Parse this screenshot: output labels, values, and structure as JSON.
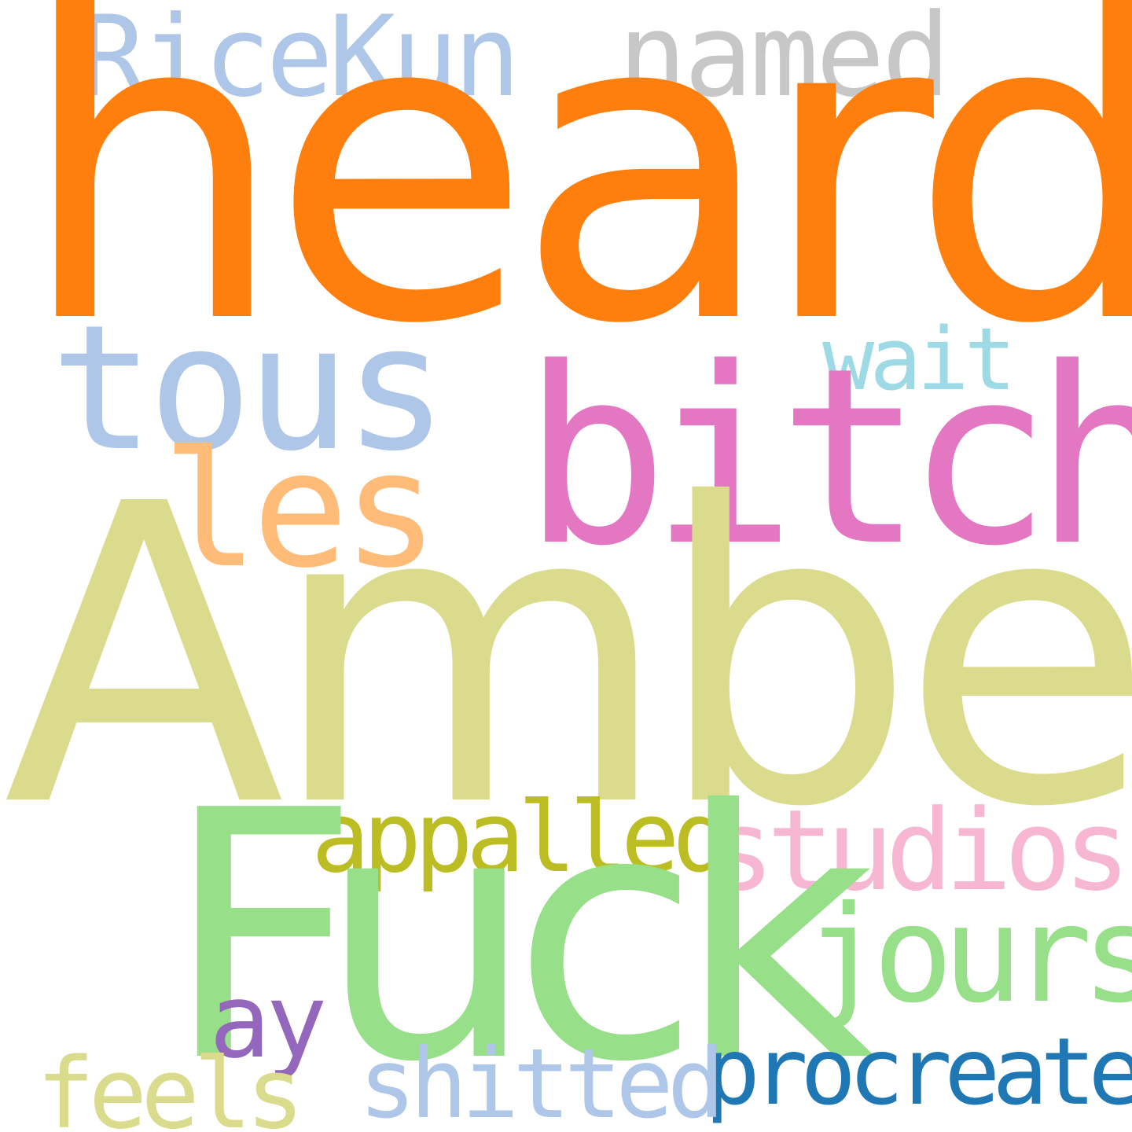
{
  "words": {
    "heard": {
      "text": "heard",
      "color": "#ff7f0e"
    },
    "amber": {
      "text": "Amber",
      "color": "#dbdb8d"
    },
    "fuck": {
      "text": "Fuck",
      "color": "#98df8a"
    },
    "bitch": {
      "text": "bitch",
      "color": "#e377c2"
    },
    "tous": {
      "text": "tous",
      "color": "#aec7e8"
    },
    "ricekun": {
      "text": "RiceKun",
      "color": "#aec7e8"
    },
    "named": {
      "text": "named",
      "color": "#c7c7c7"
    },
    "les": {
      "text": "les",
      "color": "#ffbb78"
    },
    "wait": {
      "text": "wait",
      "color": "#9edae5"
    },
    "studios": {
      "text": "studios",
      "color": "#f7b6d2"
    },
    "appalled": {
      "text": "appalled",
      "color": "#bcbd22"
    },
    "jours": {
      "text": "jours",
      "color": "#98df8a"
    },
    "ay": {
      "text": "ay",
      "color": "#9467bd"
    },
    "procreate": {
      "text": "procreate",
      "color": "#1f77b4"
    },
    "shitted": {
      "text": "shitted",
      "color": "#aec7e8"
    },
    "feels": {
      "text": "feels",
      "color": "#dbdb8d"
    }
  }
}
